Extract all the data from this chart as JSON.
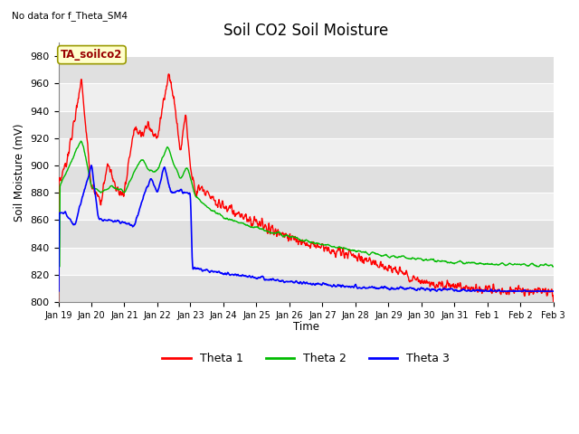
{
  "title": "Soil CO2 Soil Moisture",
  "ylabel": "Soil Moisture (mV)",
  "xlabel": "Time",
  "top_left_note": "No data for f_Theta_SM4",
  "legend_box_label": "TA_soilco2",
  "ylim": [
    800,
    990
  ],
  "yticks": [
    800,
    820,
    840,
    860,
    880,
    900,
    920,
    940,
    960,
    980
  ],
  "x_labels": [
    "Jan 19",
    "Jan 20",
    "Jan 21",
    "Jan 22",
    "Jan 23",
    "Jan 24",
    "Jan 25",
    "Jan 26",
    "Jan 27",
    "Jan 28",
    "Jan 29",
    "Jan 30",
    "Jan 31",
    "Feb 1",
    "Feb 2",
    "Feb 3"
  ],
  "colors": {
    "theta1": "#ff0000",
    "theta2": "#00bb00",
    "theta3": "#0000ff",
    "bg_dark": "#e0e0e0",
    "bg_light": "#efefef"
  },
  "legend_entries": [
    "Theta 1",
    "Theta 2",
    "Theta 3"
  ]
}
